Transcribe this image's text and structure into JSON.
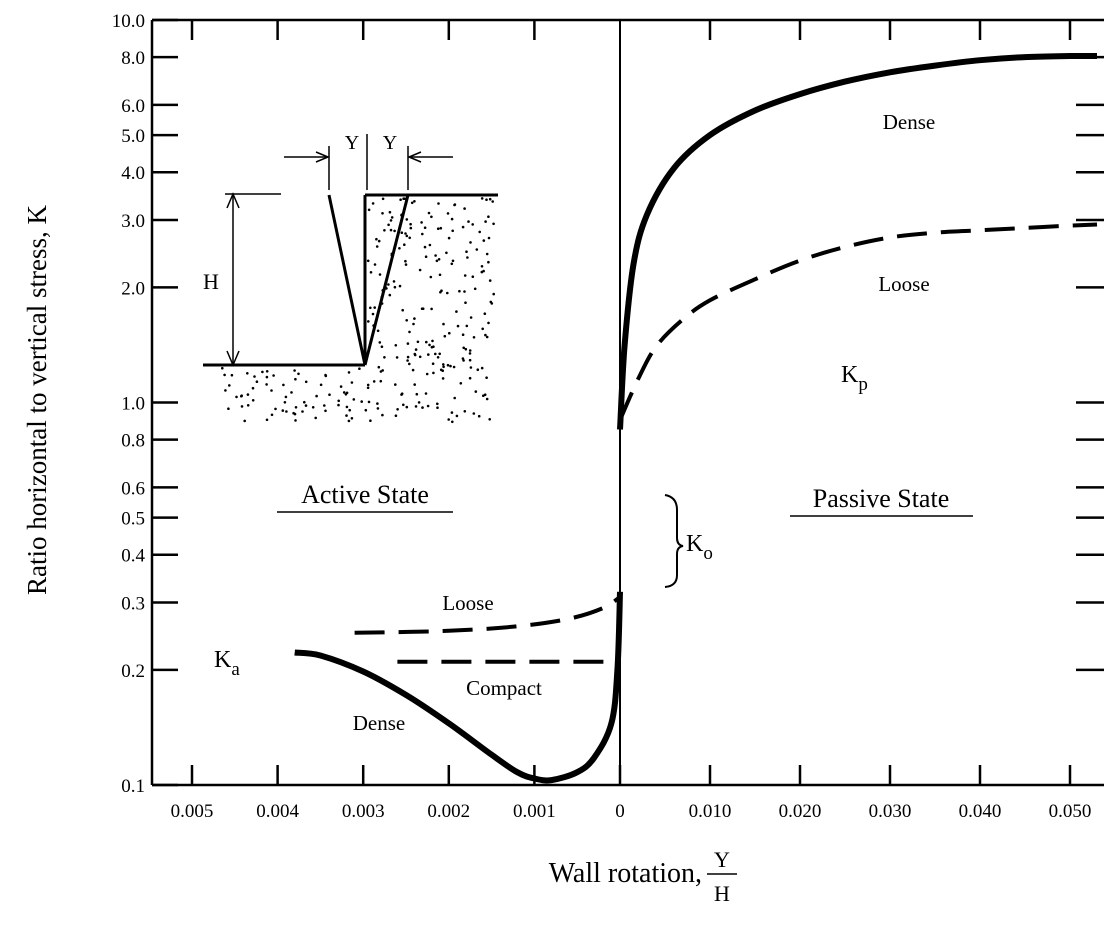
{
  "chart_data": {
    "type": "line",
    "title": "",
    "ylabel": "Ratio horizontal to vertical stress, K",
    "xlabel": "Wall rotation,",
    "xlabel_fraction": {
      "numerator": "Y",
      "denominator": "H"
    },
    "y_scale": "log",
    "ylim": [
      0.1,
      10.0
    ],
    "y_ticks": [
      "10.0",
      "8.0",
      "6.0",
      "5.0",
      "4.0",
      "3.0",
      "2.0",
      "1.0",
      "0.8",
      "0.6",
      "0.5",
      "0.4",
      "0.3",
      "0.2",
      "0.1"
    ],
    "x_axis_active": {
      "direction": "reversed",
      "range": [
        0.005,
        0
      ],
      "ticks": [
        "0.005",
        "0.004",
        "0.003",
        "0.002",
        "0.001",
        "0"
      ]
    },
    "x_axis_passive": {
      "range": [
        0,
        0.05
      ],
      "ticks": [
        "0.010",
        "0.020",
        "0.030",
        "0.040",
        "0.050"
      ]
    },
    "grid": false,
    "series": [
      {
        "state": "passive",
        "name": "Dense",
        "style": "solid",
        "points": [
          [
            0.0,
            0.85
          ],
          [
            0.0005,
            1.4
          ],
          [
            0.0015,
            2.3
          ],
          [
            0.003,
            3.1
          ],
          [
            0.006,
            4.1
          ],
          [
            0.01,
            5.0
          ],
          [
            0.015,
            5.8
          ],
          [
            0.02,
            6.4
          ],
          [
            0.025,
            6.9
          ],
          [
            0.03,
            7.3
          ],
          [
            0.035,
            7.6
          ],
          [
            0.04,
            7.85
          ],
          [
            0.045,
            8.0
          ],
          [
            0.05,
            8.05
          ],
          [
            0.053,
            8.05
          ]
        ]
      },
      {
        "state": "passive",
        "name": "Loose",
        "style": "dashed",
        "points": [
          [
            0.0,
            0.9
          ],
          [
            0.002,
            1.15
          ],
          [
            0.004,
            1.4
          ],
          [
            0.007,
            1.65
          ],
          [
            0.01,
            1.85
          ],
          [
            0.015,
            2.1
          ],
          [
            0.02,
            2.35
          ],
          [
            0.025,
            2.55
          ],
          [
            0.03,
            2.7
          ],
          [
            0.035,
            2.78
          ],
          [
            0.04,
            2.82
          ],
          [
            0.045,
            2.86
          ],
          [
            0.05,
            2.9
          ],
          [
            0.053,
            2.92
          ]
        ]
      },
      {
        "state": "active",
        "name": "Dense",
        "style": "solid",
        "points": [
          [
            0.0038,
            0.222
          ],
          [
            0.0035,
            0.218
          ],
          [
            0.003,
            0.198
          ],
          [
            0.0025,
            0.172
          ],
          [
            0.002,
            0.145
          ],
          [
            0.0015,
            0.12
          ],
          [
            0.0012,
            0.108
          ],
          [
            0.001,
            0.104
          ],
          [
            0.0008,
            0.103
          ],
          [
            0.0005,
            0.108
          ],
          [
            0.0003,
            0.118
          ],
          [
            0.0001,
            0.145
          ],
          [
            3e-05,
            0.2
          ],
          [
            0.0,
            0.32
          ]
        ]
      },
      {
        "state": "active",
        "name": "Loose",
        "style": "dashed",
        "points": [
          [
            0.0031,
            0.25
          ],
          [
            0.002,
            0.253
          ],
          [
            0.0012,
            0.26
          ],
          [
            0.0006,
            0.272
          ],
          [
            0.0002,
            0.29
          ],
          [
            0.0,
            0.31
          ]
        ]
      },
      {
        "state": "active",
        "name": "Compact",
        "style": "dashed",
        "points": [
          [
            0.0026,
            0.21
          ],
          [
            0.0,
            0.21
          ]
        ]
      }
    ],
    "annotations": {
      "active_state": "Active State",
      "passive_state": "Passive State",
      "ka_base": "K",
      "ka_sub": "a",
      "kp_base": "K",
      "kp_sub": "p",
      "ko_base": "K",
      "ko_sub": "o",
      "dense_passive": "Dense",
      "loose_passive": "Loose",
      "loose_active": "Loose",
      "compact_active": "Compact",
      "dense_active": "Dense"
    },
    "inset": {
      "height_label": "H",
      "displacement_left": "Y",
      "displacement_right": "Y"
    }
  }
}
